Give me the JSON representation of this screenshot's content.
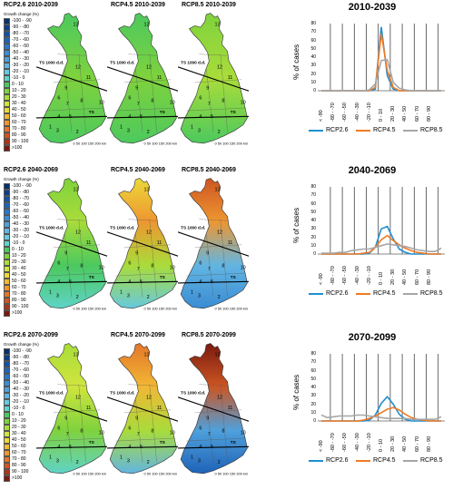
{
  "rows": [
    {
      "map_titles": [
        "RCP2.6 2010-2039",
        "RCP4.5 2010-2039",
        "RCP8.5 2010-2039"
      ],
      "chart": {
        "title": "2010-2039"
      }
    },
    {
      "map_titles": [
        "RCP2.6 2040-2069",
        "RCP4.5 2040-2069",
        "RCP8.5 2040-2069"
      ],
      "chart": {
        "title": "2040-2069"
      }
    },
    {
      "map_titles": [
        "RCP2.6 2070-2099",
        "RCP4.5 2070-2099",
        "RCP8.5 2070-2099"
      ],
      "chart": {
        "title": "2070-2099"
      }
    }
  ],
  "legend": {
    "title": "Growth change (%)",
    "items": [
      {
        "label": "-100 - -90",
        "color": "#08306b"
      },
      {
        "label": "-90 - -80",
        "color": "#0d3e8a"
      },
      {
        "label": "-80 - -70",
        "color": "#1450a3"
      },
      {
        "label": "-70 - -60",
        "color": "#1f63b8"
      },
      {
        "label": "-60 - -50",
        "color": "#2b78c8"
      },
      {
        "label": "-50 - -40",
        "color": "#3a8cd3"
      },
      {
        "label": "-40 - -30",
        "color": "#4fa0db"
      },
      {
        "label": "-30 - -20",
        "color": "#62b5e2"
      },
      {
        "label": "-20 - -10",
        "color": "#66c9de"
      },
      {
        "label": "-10 - 0",
        "color": "#5fd3c8"
      },
      {
        "label": "0 - 10",
        "color": "#4cc95e"
      },
      {
        "label": "10 - 20",
        "color": "#7fd23d"
      },
      {
        "label": "20 - 30",
        "color": "#a9dc3a"
      },
      {
        "label": "30 - 40",
        "color": "#d0e53e"
      },
      {
        "label": "40 - 50",
        "color": "#ecd93a"
      },
      {
        "label": "50 - 60",
        "color": "#f1b735"
      },
      {
        "label": "60 - 70",
        "color": "#ee9630"
      },
      {
        "label": "70 - 80",
        "color": "#e4762a"
      },
      {
        "label": "80 - 90",
        "color": "#cc5522"
      },
      {
        "label": "90 - 100",
        "color": "#a8361a"
      },
      {
        "label": ">100",
        "color": "#7a1a0f"
      }
    ]
  },
  "map_labels": {
    "ts1000": "TS\n1000 d.d.",
    "ts1200": "TS\n1200 d.d.",
    "scale": "0 50 100 150 200",
    "km": "km",
    "regions": [
      "13",
      "12",
      "11",
      "10",
      "9",
      "8",
      "7",
      "6",
      "5",
      "4",
      "3",
      "2",
      "1"
    ]
  },
  "chart_common": {
    "ylabel": "% of cases",
    "x_ticks": [
      "< -90",
      "-80 - -70",
      "-60 - -50",
      "-40 - -30",
      "-20 - -10",
      "0 - 10",
      "20 - 30",
      "40 - 50",
      "60 - 70",
      "80 - 90"
    ],
    "legend": [
      {
        "name": "RCP2.6",
        "color": "#1f8fd0"
      },
      {
        "name": "RCP4.5",
        "color": "#f07a24"
      },
      {
        "name": "RCP8.5",
        "color": "#a6a6a6"
      }
    ]
  },
  "chart_data": [
    {
      "type": "line",
      "title": "2010-2039",
      "ylabel": "% of cases",
      "ylim": [
        0,
        80
      ],
      "yticks": [
        0,
        10,
        20,
        30,
        40,
        50,
        60,
        70,
        80
      ],
      "x": [
        "< -90",
        "-90 - -80",
        "-80 - -70",
        "-70 - -60",
        "-60 - -50",
        "-50 - -40",
        "-40 - -30",
        "-30 - -20",
        "-20 - -10",
        "-10 - 0",
        "0 - 10",
        "10 - 20",
        "20 - 30",
        "30 - 40",
        "40 - 50",
        "50 - 60",
        "60 - 70",
        "70 - 80",
        "80 - 90",
        "90 - 100",
        ">100"
      ],
      "series": [
        {
          "name": "RCP2.6",
          "values": [
            0,
            0,
            0,
            0,
            0,
            0,
            0,
            0,
            0,
            2,
            76,
            18,
            2,
            0,
            0,
            0,
            0,
            0,
            0,
            0,
            0
          ]
        },
        {
          "name": "RCP4.5",
          "values": [
            0,
            0,
            0,
            0,
            0,
            0,
            0,
            0,
            0,
            4,
            68,
            24,
            4,
            0,
            0,
            0,
            0,
            0,
            0,
            0,
            0
          ]
        },
        {
          "name": "RCP8.5",
          "values": [
            0,
            0,
            0,
            0,
            0,
            0,
            0,
            0,
            1,
            8,
            36,
            37,
            10,
            3,
            1,
            0,
            0,
            0,
            0,
            0,
            0
          ]
        }
      ]
    },
    {
      "type": "line",
      "title": "2040-2069",
      "ylabel": "% of cases",
      "ylim": [
        0,
        80
      ],
      "yticks": [
        0,
        10,
        20,
        30,
        40,
        50,
        60,
        70,
        80
      ],
      "x": [
        "< -90",
        "-90 - -80",
        "-80 - -70",
        "-70 - -60",
        "-60 - -50",
        "-50 - -40",
        "-40 - -30",
        "-30 - -20",
        "-20 - -10",
        "-10 - 0",
        "0 - 10",
        "10 - 20",
        "20 - 30",
        "30 - 40",
        "40 - 50",
        "50 - 60",
        "60 - 70",
        "70 - 80",
        "80 - 90",
        "90 - 100",
        ">100"
      ],
      "series": [
        {
          "name": "RCP2.6",
          "values": [
            0,
            0,
            0,
            0,
            0,
            0,
            0,
            0,
            1,
            8,
            30,
            33,
            18,
            6,
            2,
            0,
            0,
            0,
            0,
            0,
            0
          ]
        },
        {
          "name": "RCP4.5",
          "values": [
            0,
            0,
            0,
            0,
            0,
            0,
            0,
            1,
            2,
            8,
            17,
            22,
            16,
            11,
            7,
            4,
            2,
            1,
            0,
            0,
            0
          ]
        },
        {
          "name": "RCP8.5",
          "values": [
            1,
            1,
            1,
            2,
            2,
            4,
            5,
            6,
            6,
            8,
            10,
            12,
            11,
            10,
            9,
            7,
            5,
            4,
            3,
            3,
            7
          ]
        }
      ]
    },
    {
      "type": "line",
      "title": "2070-2099",
      "ylabel": "% of cases",
      "ylim": [
        0,
        80
      ],
      "yticks": [
        0,
        10,
        20,
        30,
        40,
        50,
        60,
        70,
        80
      ],
      "x": [
        "< -90",
        "-90 - -80",
        "-80 - -70",
        "-70 - -60",
        "-60 - -50",
        "-50 - -40",
        "-40 - -30",
        "-30 - -20",
        "-20 - -10",
        "-10 - 0",
        "0 - 10",
        "10 - 20",
        "20 - 30",
        "30 - 40",
        "40 - 50",
        "50 - 60",
        "60 - 70",
        "70 - 80",
        "80 - 90",
        "90 - 100",
        ">100"
      ],
      "series": [
        {
          "name": "RCP2.6",
          "values": [
            0,
            0,
            0,
            0,
            0,
            0,
            0,
            0,
            1,
            7,
            21,
            29,
            20,
            8,
            2,
            0,
            0,
            0,
            0,
            0,
            0
          ]
        },
        {
          "name": "RCP4.5",
          "values": [
            0,
            0,
            0,
            0,
            0,
            0,
            0,
            1,
            3,
            6,
            10,
            14,
            16,
            13,
            8,
            4,
            2,
            1,
            0,
            0,
            0
          ]
        },
        {
          "name": "RCP8.5",
          "values": [
            7,
            4,
            5,
            6,
            6,
            6,
            7,
            7,
            6,
            5,
            4,
            3,
            3,
            3,
            3,
            2,
            2,
            2,
            2,
            2,
            5
          ]
        }
      ]
    }
  ]
}
